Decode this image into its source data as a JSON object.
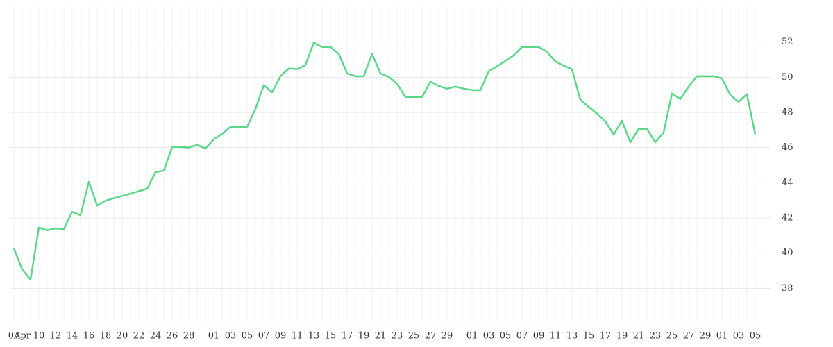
{
  "chart_data": {
    "type": "line",
    "categories": [
      "07",
      "Apr",
      null,
      "10",
      null,
      "12",
      null,
      "14",
      null,
      "16",
      null,
      "18",
      null,
      "20",
      null,
      "22",
      null,
      "24",
      null,
      "26",
      null,
      "28",
      null,
      null,
      "01",
      null,
      "03",
      null,
      "05",
      null,
      "07",
      null,
      "09",
      null,
      "11",
      null,
      "13",
      null,
      "15",
      null,
      "17",
      null,
      "19",
      null,
      "21",
      null,
      "23",
      null,
      "25",
      null,
      "27",
      null,
      "29",
      null,
      null,
      "01",
      null,
      "03",
      null,
      "05",
      null,
      "07",
      null,
      "09",
      null,
      "11",
      null,
      "13",
      null,
      "15",
      null,
      "17",
      null,
      "19",
      null,
      "21",
      null,
      "23",
      null,
      "25",
      null,
      "27",
      null,
      "29",
      null,
      "01",
      null,
      "03",
      null,
      "05"
    ],
    "series": [
      {
        "color": "#5cd68a",
        "values": [
          40.26,
          39.07,
          38.5,
          41.45,
          41.3,
          41.4,
          41.37,
          42.35,
          42.15,
          44.05,
          42.7,
          42.98,
          43.12,
          43.25,
          43.38,
          43.52,
          43.66,
          44.6,
          44.7,
          46.03,
          46.03,
          46.0,
          46.15,
          45.95,
          46.47,
          46.78,
          47.18,
          47.18,
          47.18,
          48.2,
          49.55,
          49.15,
          50.06,
          50.5,
          50.46,
          50.7,
          51.96,
          51.72,
          51.72,
          51.33,
          50.22,
          50.06,
          50.06,
          51.33,
          50.22,
          50.02,
          49.63,
          48.88,
          48.88,
          48.88,
          49.75,
          49.51,
          49.35,
          49.47,
          49.35,
          49.27,
          49.27,
          50.34,
          50.62,
          50.93,
          51.25,
          51.72,
          51.72,
          51.72,
          51.45,
          50.9,
          50.66,
          50.46,
          48.72,
          48.32,
          47.93,
          47.5,
          46.74,
          47.53,
          46.3,
          47.06,
          47.06,
          46.3,
          46.86,
          49.08,
          48.76,
          49.47,
          50.06,
          50.06,
          50.06,
          49.94,
          49.0,
          48.6,
          49.04,
          46.74
        ]
      }
    ],
    "ylim": [
      36,
      54
    ],
    "yticks": [
      38,
      40,
      42,
      44,
      46,
      48,
      50,
      52
    ],
    "grid": true
  }
}
